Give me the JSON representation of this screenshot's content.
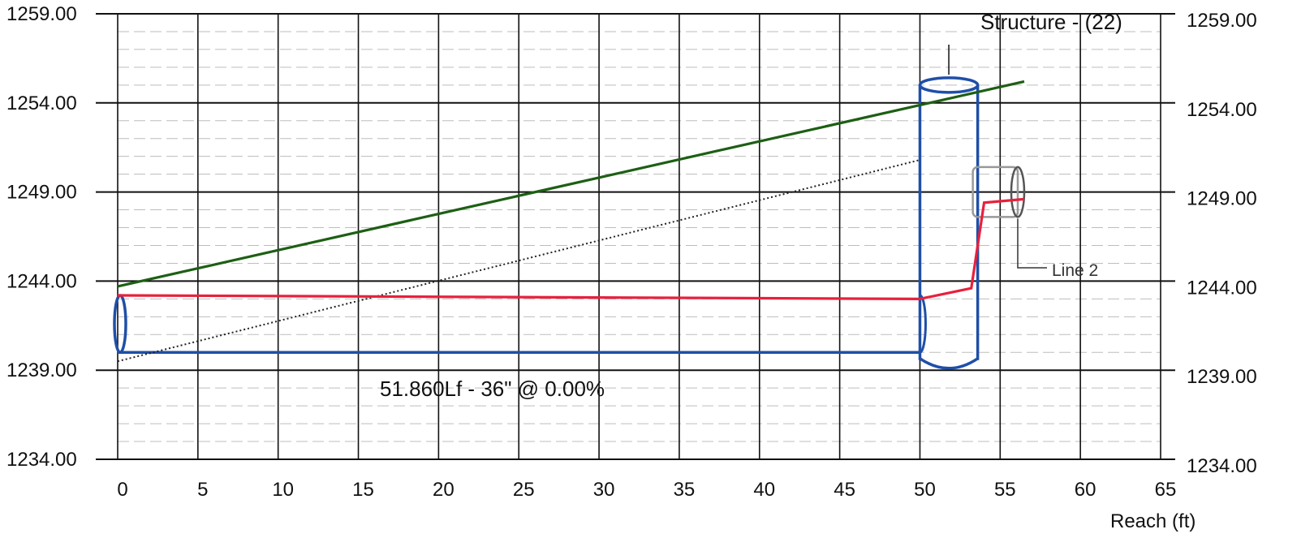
{
  "chart_data": {
    "type": "line",
    "xlabel": "Reach (ft)",
    "x_ticks": [
      "0",
      "5",
      "10",
      "15",
      "20",
      "25",
      "30",
      "35",
      "40",
      "45",
      "50",
      "55",
      "60",
      "65"
    ],
    "y_ticks": [
      "1234.00",
      "1239.00",
      "1244.00",
      "1249.00",
      "1254.00",
      "1259.00"
    ],
    "xlim": [
      0,
      65
    ],
    "ylim": [
      1234,
      1259
    ],
    "grid": true,
    "series": [
      {
        "color": "#1d5f14",
        "style": "solid",
        "points": [
          [
            0,
            1243.7
          ],
          [
            56.5,
            1255.2
          ]
        ]
      },
      {
        "color": "#222222",
        "style": "dotted",
        "points": [
          [
            0,
            1239.5
          ],
          [
            50,
            1250.8
          ]
        ]
      },
      {
        "color": "#e8203c",
        "style": "solid",
        "points": [
          [
            0,
            1243.2
          ],
          [
            50,
            1243.0
          ],
          [
            53.2,
            1243.6
          ],
          [
            54,
            1248.4
          ],
          [
            56.5,
            1248.6
          ]
        ]
      }
    ],
    "pipe": {
      "x_start": 0,
      "x_end": 50,
      "invert": 1240.0,
      "crown": 1243.2,
      "color": "#1f4fa8"
    },
    "structure": {
      "x_left": 50,
      "x_right": 53.6,
      "top": 1255.0,
      "bottom": 1239.2,
      "color": "#1f4fa8"
    },
    "line2_pipe": {
      "x_left": 53.6,
      "x_right": 56.4,
      "top": 1250.4,
      "bottom": 1247.6,
      "color": "#999999"
    },
    "annotations": {
      "structure_label": "Structure - (22)",
      "line_label": "Line 2",
      "pipe_label": "51.860Lf - 36\" @ 0.00%"
    }
  }
}
